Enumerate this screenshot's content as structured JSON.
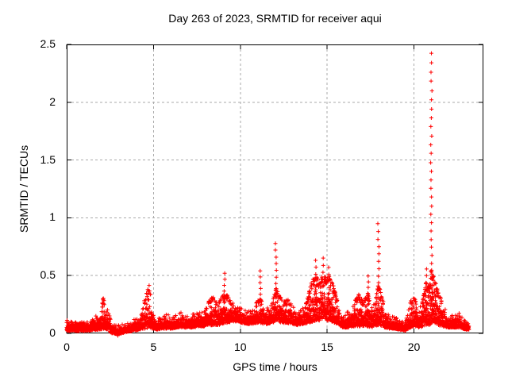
{
  "chart_data": {
    "type": "scatter",
    "title": "Day 263 of 2023, SRMTID for receiver aqui",
    "xlabel": "GPS time / hours",
    "ylabel": "SRMTID / TECUs",
    "xlim": [
      0,
      24
    ],
    "ylim": [
      0,
      2.5
    ],
    "xticks": [
      {
        "v": 0,
        "label": "0"
      },
      {
        "v": 5,
        "label": "5"
      },
      {
        "v": 10,
        "label": "10"
      },
      {
        "v": 15,
        "label": "15"
      },
      {
        "v": 20,
        "label": "20"
      }
    ],
    "yticks": [
      {
        "v": 0,
        "label": "0"
      },
      {
        "v": 0.5,
        "label": "0.5"
      },
      {
        "v": 1,
        "label": "1"
      },
      {
        "v": 1.5,
        "label": "1.5"
      },
      {
        "v": 2,
        "label": "2"
      },
      {
        "v": 2.5,
        "label": "2.5"
      }
    ],
    "grid": true,
    "legend": "none",
    "marker": "plus-cross",
    "marker_color": "#ff0000",
    "grid_color": "#aaaaaa",
    "border_color": "#000000",
    "sample_minutes": 1,
    "time_range": [
      0,
      23.17
    ],
    "notable_peaks": [
      [
        2.1,
        0.31
      ],
      [
        4.75,
        0.42
      ],
      [
        9.1,
        0.52
      ],
      [
        11.15,
        0.54
      ],
      [
        12.05,
        0.78
      ],
      [
        14.35,
        0.63
      ],
      [
        14.75,
        0.65
      ],
      [
        15.1,
        0.57
      ],
      [
        17.35,
        0.5
      ],
      [
        17.95,
        0.95
      ],
      [
        20.7,
        0.56
      ],
      [
        21.0,
        2.42
      ]
    ],
    "envelope_points": [
      [
        0.0,
        0.02,
        0.12
      ],
      [
        0.4,
        0.02,
        0.1
      ],
      [
        0.8,
        0.02,
        0.13
      ],
      [
        1.2,
        0.02,
        0.11
      ],
      [
        1.6,
        0.03,
        0.14
      ],
      [
        1.9,
        0.03,
        0.2
      ],
      [
        2.1,
        0.04,
        0.31
      ],
      [
        2.35,
        0.03,
        0.22
      ],
      [
        2.6,
        0.0,
        0.1
      ],
      [
        3.0,
        -0.01,
        0.07
      ],
      [
        3.4,
        0.01,
        0.09
      ],
      [
        3.8,
        0.02,
        0.11
      ],
      [
        4.2,
        0.03,
        0.16
      ],
      [
        4.5,
        0.04,
        0.3
      ],
      [
        4.75,
        0.05,
        0.42
      ],
      [
        4.95,
        0.04,
        0.25
      ],
      [
        5.15,
        0.03,
        0.14
      ],
      [
        5.5,
        0.04,
        0.13
      ],
      [
        5.8,
        0.04,
        0.18
      ],
      [
        6.1,
        0.04,
        0.14
      ],
      [
        6.4,
        0.05,
        0.17
      ],
      [
        6.7,
        0.05,
        0.2
      ],
      [
        7.0,
        0.05,
        0.15
      ],
      [
        7.3,
        0.05,
        0.17
      ],
      [
        7.6,
        0.06,
        0.22
      ],
      [
        7.9,
        0.06,
        0.19
      ],
      [
        8.2,
        0.07,
        0.3
      ],
      [
        8.45,
        0.07,
        0.33
      ],
      [
        8.7,
        0.07,
        0.26
      ],
      [
        8.95,
        0.08,
        0.32
      ],
      [
        9.1,
        0.09,
        0.35
      ],
      [
        9.25,
        0.09,
        0.33
      ],
      [
        9.5,
        0.1,
        0.27
      ],
      [
        9.8,
        0.1,
        0.24
      ],
      [
        10.1,
        0.09,
        0.21
      ],
      [
        10.4,
        0.08,
        0.19
      ],
      [
        10.7,
        0.08,
        0.2
      ],
      [
        10.95,
        0.09,
        0.28
      ],
      [
        11.15,
        0.09,
        0.3
      ],
      [
        11.35,
        0.08,
        0.26
      ],
      [
        11.6,
        0.08,
        0.22
      ],
      [
        11.85,
        0.09,
        0.28
      ],
      [
        12.05,
        0.1,
        0.4
      ],
      [
        12.2,
        0.1,
        0.36
      ],
      [
        12.45,
        0.09,
        0.27
      ],
      [
        12.7,
        0.09,
        0.31
      ],
      [
        13.0,
        0.08,
        0.24
      ],
      [
        13.3,
        0.07,
        0.19
      ],
      [
        13.6,
        0.08,
        0.22
      ],
      [
        13.9,
        0.09,
        0.32
      ],
      [
        14.15,
        0.1,
        0.48
      ],
      [
        14.35,
        0.11,
        0.5
      ],
      [
        14.55,
        0.11,
        0.45
      ],
      [
        14.75,
        0.12,
        0.52
      ],
      [
        14.95,
        0.11,
        0.48
      ],
      [
        15.1,
        0.11,
        0.5
      ],
      [
        15.3,
        0.1,
        0.45
      ],
      [
        15.6,
        0.08,
        0.28
      ],
      [
        15.9,
        0.05,
        0.16
      ],
      [
        16.2,
        0.05,
        0.19
      ],
      [
        16.5,
        0.06,
        0.26
      ],
      [
        16.8,
        0.06,
        0.34
      ],
      [
        17.1,
        0.06,
        0.28
      ],
      [
        17.35,
        0.06,
        0.35
      ],
      [
        17.6,
        0.05,
        0.22
      ],
      [
        17.8,
        0.06,
        0.3
      ],
      [
        17.95,
        0.07,
        0.45
      ],
      [
        18.1,
        0.06,
        0.35
      ],
      [
        18.35,
        0.05,
        0.22
      ],
      [
        18.6,
        0.04,
        0.16
      ],
      [
        18.9,
        0.04,
        0.14
      ],
      [
        19.2,
        0.03,
        0.12
      ],
      [
        19.5,
        0.02,
        0.1
      ],
      [
        19.8,
        0.05,
        0.28
      ],
      [
        20.05,
        0.06,
        0.32
      ],
      [
        20.3,
        0.05,
        0.2
      ],
      [
        20.55,
        0.06,
        0.33
      ],
      [
        20.7,
        0.07,
        0.45
      ],
      [
        20.85,
        0.07,
        0.4
      ],
      [
        21.0,
        0.08,
        0.55
      ],
      [
        21.12,
        0.08,
        0.5
      ],
      [
        21.25,
        0.08,
        0.45
      ],
      [
        21.45,
        0.07,
        0.35
      ],
      [
        21.7,
        0.06,
        0.24
      ],
      [
        22.0,
        0.05,
        0.17
      ],
      [
        22.3,
        0.05,
        0.15
      ],
      [
        22.55,
        0.05,
        0.19
      ],
      [
        22.8,
        0.04,
        0.13
      ],
      [
        23.05,
        0.03,
        0.1
      ],
      [
        23.17,
        0.03,
        0.09
      ]
    ],
    "spike_columns": [
      {
        "t": 9.1,
        "base": 0.14,
        "top": 0.52,
        "n": 9
      },
      {
        "t": 11.15,
        "base": 0.12,
        "top": 0.54,
        "n": 10
      },
      {
        "t": 12.05,
        "base": 0.12,
        "top": 0.78,
        "n": 13
      },
      {
        "t": 14.35,
        "base": 0.2,
        "top": 0.63,
        "n": 9
      },
      {
        "t": 14.75,
        "base": 0.25,
        "top": 0.65,
        "n": 8
      },
      {
        "t": 15.1,
        "base": 0.25,
        "top": 0.57,
        "n": 7
      },
      {
        "t": 17.35,
        "base": 0.12,
        "top": 0.5,
        "n": 9
      },
      {
        "t": 17.95,
        "base": 0.1,
        "top": 0.95,
        "n": 15
      },
      {
        "t": 20.7,
        "base": 0.12,
        "top": 0.56,
        "n": 9
      },
      {
        "t": 21.0,
        "base": 0.3,
        "top": 2.42,
        "n": 30
      },
      {
        "t": 21.05,
        "base": 0.12,
        "top": 0.55,
        "n": 8
      }
    ]
  }
}
